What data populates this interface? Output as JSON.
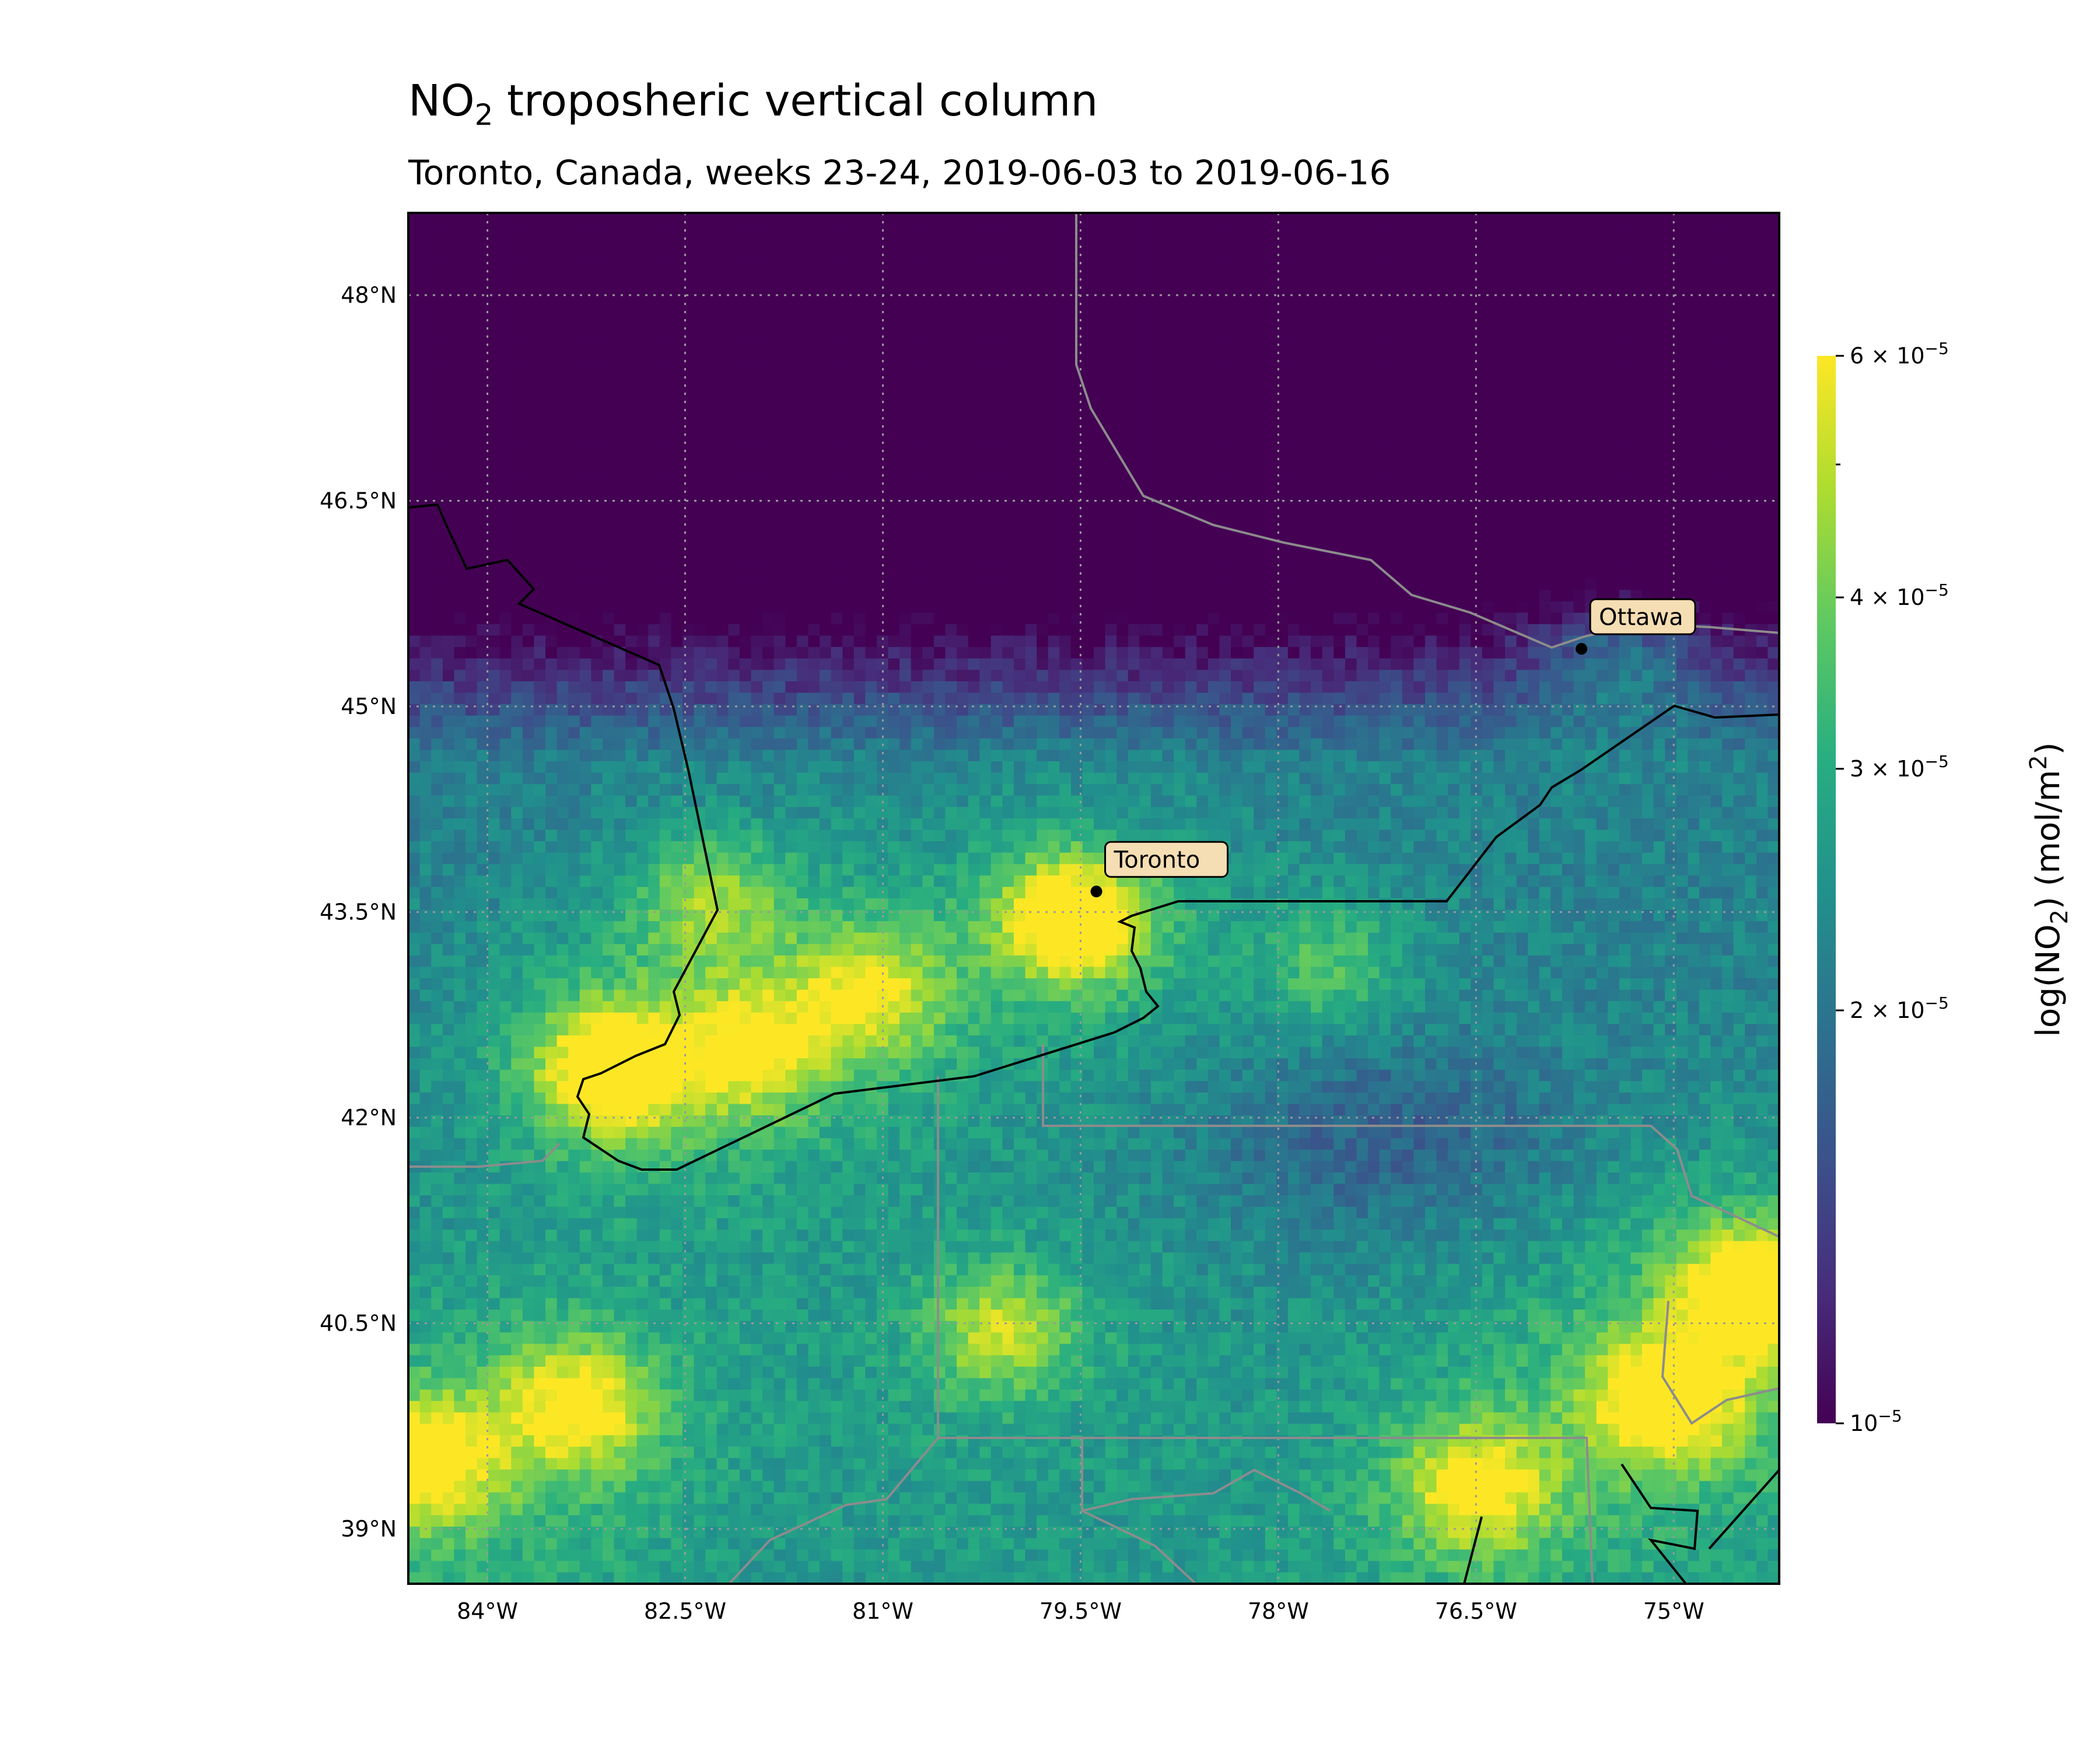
{
  "title": {
    "main": "NO",
    "sub": "2",
    "rest": " troposheric vertical column"
  },
  "subtitle": "Toronto, Canada, weeks 23-24, 2019-06-03 to 2019-06-16",
  "map": {
    "lon_range": [
      -84.6,
      -74.2
    ],
    "lat_range": [
      38.6,
      48.6
    ],
    "grid": true,
    "lon_ticks": [
      {
        "value": -84.0,
        "label": "84°W"
      },
      {
        "value": -82.5,
        "label": "82.5°W"
      },
      {
        "value": -81.0,
        "label": "81°W"
      },
      {
        "value": -79.5,
        "label": "79.5°W"
      },
      {
        "value": -78.0,
        "label": "78°W"
      },
      {
        "value": -76.5,
        "label": "76.5°W"
      },
      {
        "value": -75.0,
        "label": "75°W"
      }
    ],
    "lat_ticks": [
      {
        "value": 48.0,
        "label": "48°N"
      },
      {
        "value": 46.5,
        "label": "46.5°N"
      },
      {
        "value": 45.0,
        "label": "45°N"
      },
      {
        "value": 43.5,
        "label": "43.5°N"
      },
      {
        "value": 42.0,
        "label": "42°N"
      },
      {
        "value": 40.5,
        "label": "40.5°N"
      },
      {
        "value": 39.0,
        "label": "39°N"
      }
    ],
    "cities": [
      {
        "name": "Toronto",
        "lon": -79.38,
        "lat": 43.65
      },
      {
        "name": "Ottawa",
        "lon": -75.7,
        "lat": 45.42
      }
    ],
    "hotspots": [
      {
        "lon": -79.55,
        "lat": 43.45,
        "strength": 1.0
      },
      {
        "lon": -83.05,
        "lat": 42.35,
        "strength": 0.95
      },
      {
        "lon": -75.05,
        "lat": 39.95,
        "strength": 0.85
      },
      {
        "lon": -74.4,
        "lat": 40.75,
        "strength": 0.9
      },
      {
        "lon": -84.5,
        "lat": 39.5,
        "strength": 0.8
      },
      {
        "lon": -83.3,
        "lat": 39.9,
        "strength": 0.7
      },
      {
        "lon": -76.5,
        "lat": 39.3,
        "strength": 0.7
      },
      {
        "lon": -81.1,
        "lat": 42.9,
        "strength": 0.6
      },
      {
        "lon": -82.0,
        "lat": 42.5,
        "strength": 0.6
      },
      {
        "lon": -77.6,
        "lat": 43.1,
        "strength": 0.35
      },
      {
        "lon": -82.3,
        "lat": 43.6,
        "strength": 0.45
      },
      {
        "lon": -80.1,
        "lat": 40.45,
        "strength": 0.55
      },
      {
        "lon": -75.4,
        "lat": 45.35,
        "strength": 0.4
      }
    ]
  },
  "colorbar": {
    "label": "log(NO₂) (mol/m²)",
    "label_main": "log(NO",
    "label_sub": "2",
    "label_mid": ") (mol/m",
    "label_sup": "2",
    "label_end": ")",
    "min": 1e-05,
    "max": 6e-05,
    "scale": "log",
    "colormap": "viridis",
    "ticks": [
      {
        "value": 6e-05,
        "mant": "6",
        "exp": "−5"
      },
      {
        "value": 4e-05,
        "mant": "4",
        "exp": "−5"
      },
      {
        "value": 3e-05,
        "mant": "3",
        "exp": "−5"
      },
      {
        "value": 2e-05,
        "mant": "2",
        "exp": "−5"
      },
      {
        "value": 1e-05,
        "mant": "",
        "exp": "−5"
      }
    ]
  },
  "colors": {
    "coastline": "#000000",
    "borders": "#8c8c8c",
    "grid": "#9a9a9a",
    "city_box": "#f5deb3"
  }
}
